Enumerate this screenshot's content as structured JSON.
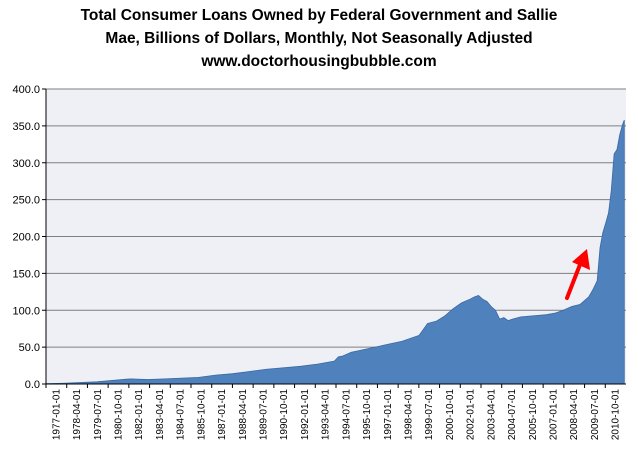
{
  "chart_data": {
    "type": "area",
    "title_lines": [
      "Total Consumer Loans Owned by Federal Government and Sallie",
      "Mae, Billions of Dollars, Monthly, Not Seasonally Adjusted",
      "www.doctorhousingbubble.com"
    ],
    "xlabel": "",
    "ylabel": "",
    "ylim": [
      0,
      400
    ],
    "y_ticks": [
      0,
      50,
      100,
      150,
      200,
      250,
      300,
      350,
      400
    ],
    "y_tick_labels": [
      "0.0",
      "50.0",
      "100.0",
      "150.0",
      "200.0",
      "250.0",
      "300.0",
      "350.0",
      "400.0"
    ],
    "x_tick_labels": [
      "1977-01-01",
      "1978-04-01",
      "1979-07-01",
      "1980-10-01",
      "1982-01-01",
      "1983-04-01",
      "1984-07-01",
      "1985-10-01",
      "1987-01-01",
      "1988-04-01",
      "1989-07-01",
      "1990-10-01",
      "1992-01-01",
      "1993-04-01",
      "1994-07-01",
      "1995-10-01",
      "1997-01-01",
      "1998-04-01",
      "1999-07-01",
      "2000-10-01",
      "2002-01-01",
      "2003-04-01",
      "2004-07-01",
      "2005-10-01",
      "2007-01-01",
      "2008-04-01",
      "2009-07-01",
      "2010-10-01"
    ],
    "grid": true,
    "series_color": "#4F81BD",
    "plot_background": "#EEF0F6",
    "annotation": "red-arrow",
    "annotation_color": "#FF0000",
    "series": [
      {
        "x": [
          1977.0,
          1978.0,
          1979.0,
          1980.0,
          1981.0,
          1982.0,
          1983.0,
          1984.0,
          1985.0,
          1986.0,
          1987.0,
          1988.0,
          1989.0,
          1990.0,
          1991.0,
          1992.0,
          1993.0,
          1994.0,
          1994.25,
          1994.5,
          1995.0,
          1996.0,
          1997.0,
          1998.0,
          1999.0,
          1999.5,
          2000.0,
          2000.5,
          2001.0,
          2001.5,
          2002.0,
          2002.25,
          2002.5,
          2002.75,
          2003.0,
          2003.25,
          2003.5,
          2003.75,
          2004.0,
          2004.25,
          2004.5,
          2005.0,
          2005.5,
          2006.0,
          2006.5,
          2007.0,
          2007.5,
          2008.0,
          2008.5,
          2009.0,
          2009.25,
          2009.5,
          2009.67,
          2009.83,
          2010.0,
          2010.17,
          2010.33,
          2010.5,
          2010.67,
          2010.83,
          2011.0,
          2011.1
        ],
        "values": [
          0.5,
          1,
          2,
          3,
          5,
          7,
          6,
          7,
          8,
          9,
          12,
          14,
          17,
          20,
          22,
          24,
          27,
          31,
          37,
          38,
          43,
          48,
          53,
          58,
          66,
          82,
          85,
          92,
          102,
          110,
          115,
          118,
          120,
          115,
          112,
          105,
          100,
          88,
          90,
          86,
          88,
          91,
          92,
          93,
          94,
          96,
          100,
          105,
          108,
          118,
          128,
          140,
          185,
          205,
          218,
          232,
          262,
          312,
          318,
          338,
          352,
          358
        ]
      }
    ]
  }
}
